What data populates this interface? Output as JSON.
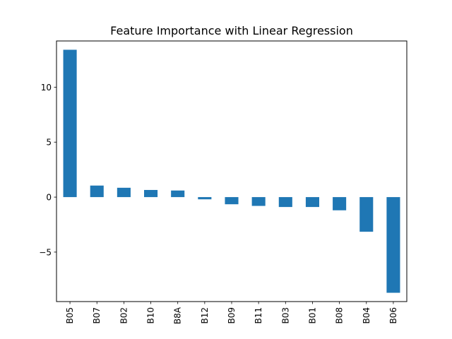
{
  "chart_data": {
    "type": "bar",
    "title": "Feature Importance with Linear Regression",
    "xlabel": "",
    "ylabel": "",
    "categories": [
      "B05",
      "B07",
      "B02",
      "B10",
      "B8A",
      "B12",
      "B09",
      "B11",
      "B03",
      "B01",
      "B08",
      "B04",
      "B06"
    ],
    "values": [
      13.4,
      1.05,
      0.85,
      0.65,
      0.6,
      -0.2,
      -0.65,
      -0.8,
      -0.9,
      -0.9,
      -1.2,
      -3.15,
      -8.7
    ],
    "ylim": [
      -9.5,
      14.2
    ],
    "yticks": [
      -5,
      0,
      5,
      10
    ],
    "ytick_labels": [
      "−5",
      "0",
      "5",
      "10"
    ],
    "bar_color": "#1f77b4",
    "grid": false,
    "legend": "none"
  }
}
